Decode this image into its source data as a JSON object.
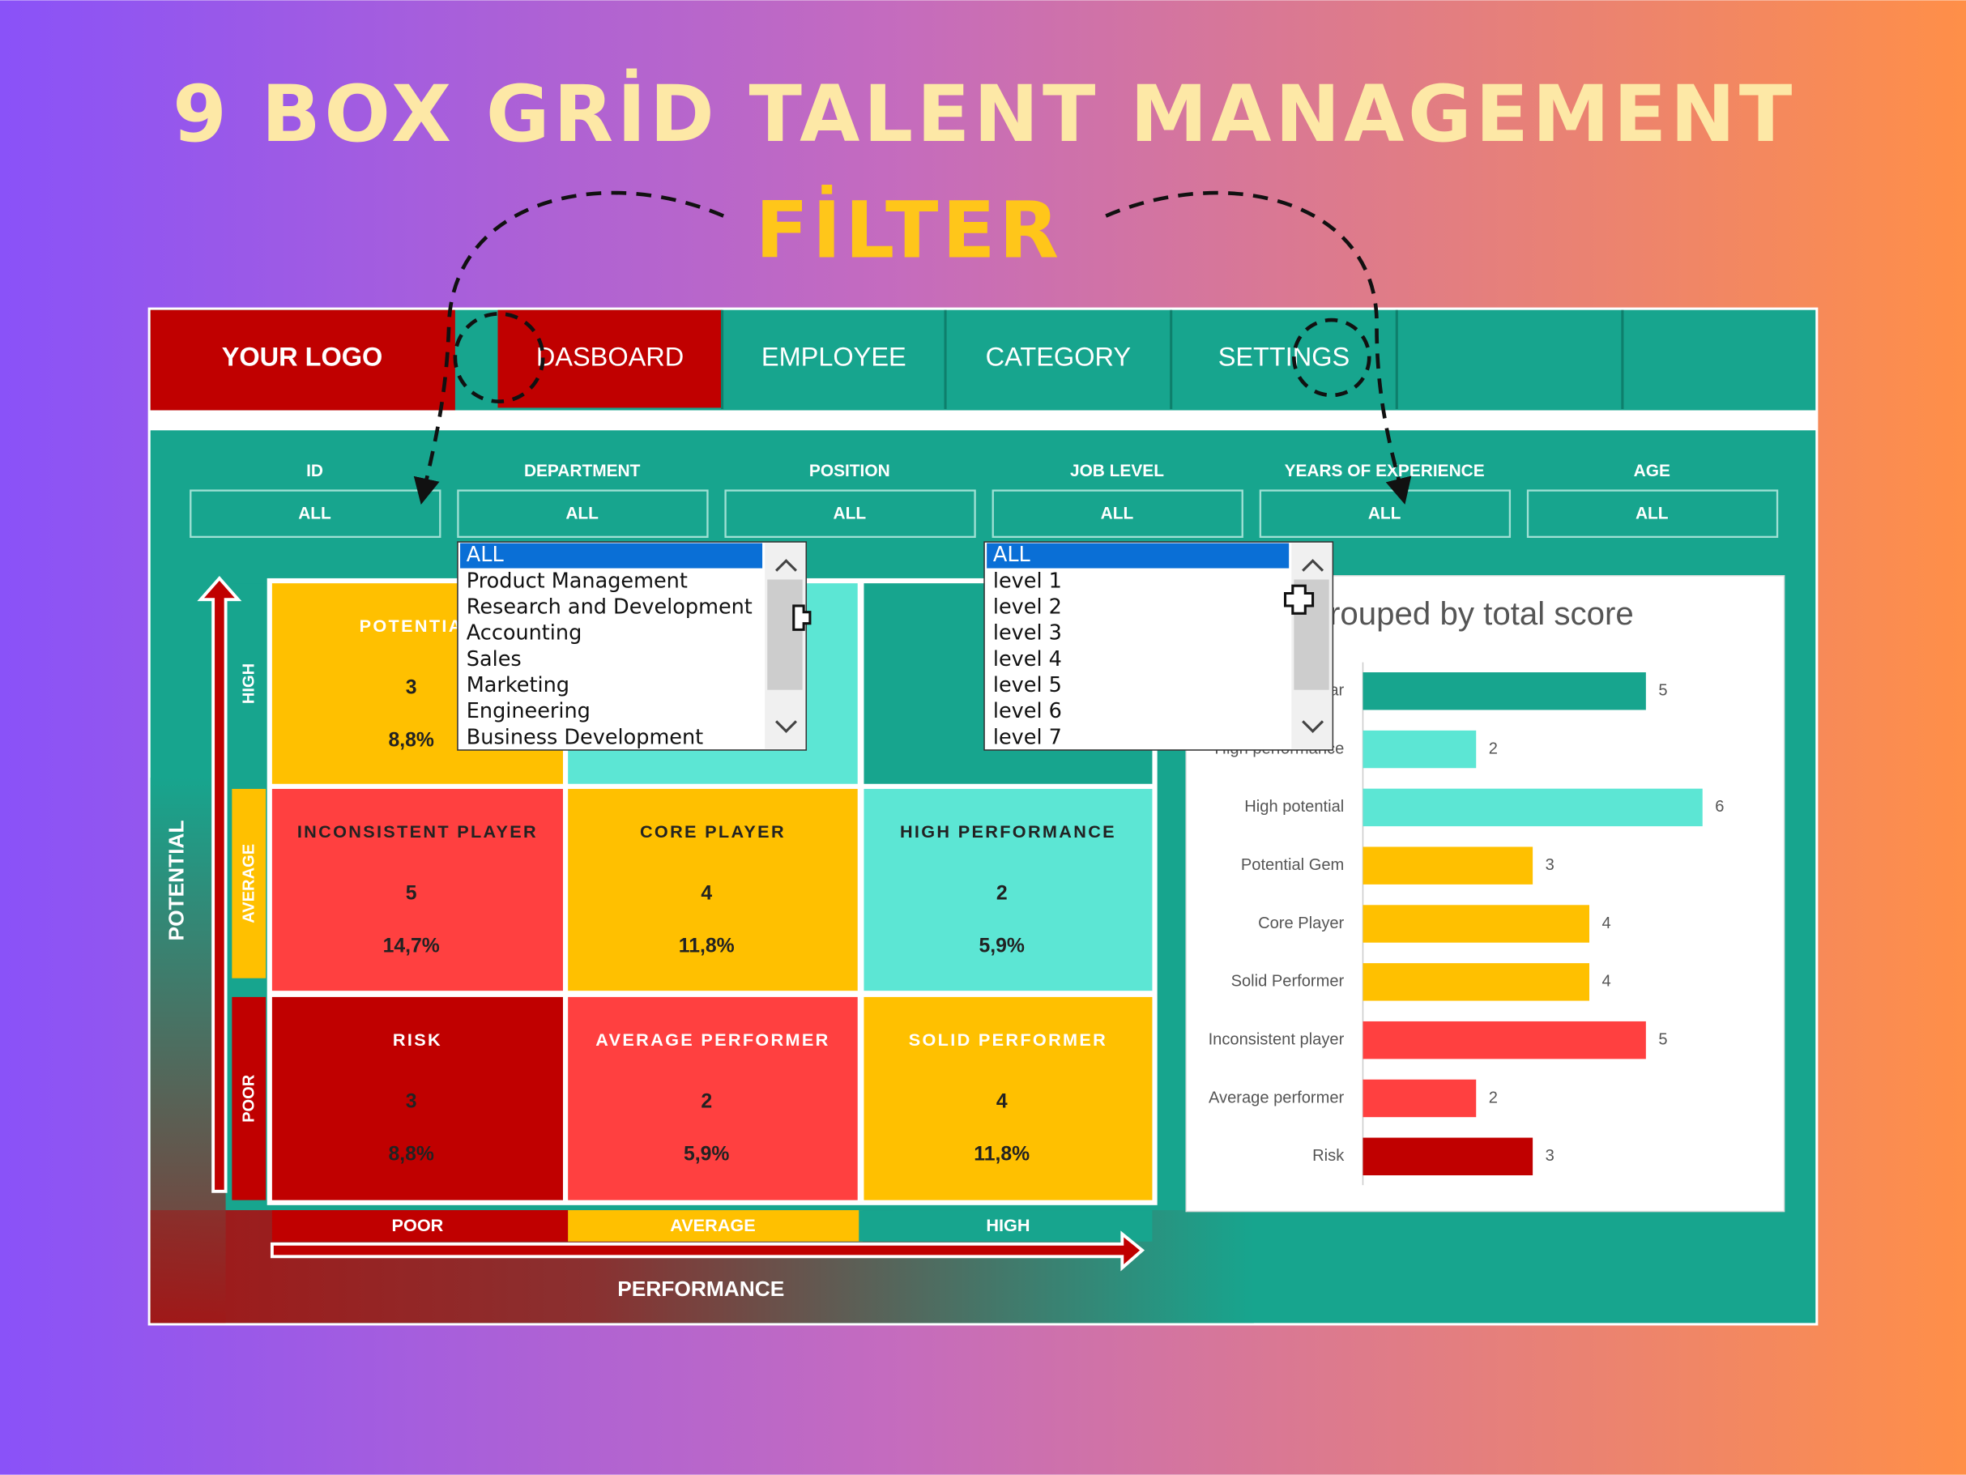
{
  "header": {
    "title": "9 BOX GRİD TALENT MANAGEMENT",
    "subtitle": "FİLTER"
  },
  "nav": {
    "logo": "YOUR LOGO",
    "tabs": [
      "DASBOARD",
      "EMPLOYEE",
      "CATEGORY",
      "SETTINGS"
    ]
  },
  "filters": [
    {
      "label": "ID",
      "value": "ALL"
    },
    {
      "label": "DEPARTMENT",
      "value": "ALL"
    },
    {
      "label": "POSITION",
      "value": "ALL"
    },
    {
      "label": "JOB LEVEL",
      "value": "ALL"
    },
    {
      "label": "YEARS OF EXPERIENCE",
      "value": "ALL"
    },
    {
      "label": "AGE",
      "value": "ALL"
    }
  ],
  "dropdowns": [
    {
      "items": [
        "ALL",
        "Product Management",
        "Research and Development",
        "Accounting",
        "Sales",
        "Marketing",
        "Engineering",
        "Business Development"
      ]
    },
    {
      "items": [
        "ALL",
        "level 1",
        "level 2",
        "level 3",
        "level 4",
        "level 5",
        "level 6",
        "level 7"
      ]
    }
  ],
  "grid": {
    "y_title": "POTENTIAL",
    "y_levels": [
      "HIGH",
      "AVERAGE",
      "POOR"
    ],
    "x_levels": [
      "POOR",
      "AVERAGE",
      "HIGH"
    ],
    "x_title": "PERFORMANCE",
    "cells": [
      [
        {
          "title": "POTENTIAL",
          "count": "3",
          "percent": "8,8%"
        },
        null,
        null
      ],
      [
        {
          "title": "INCONSISTENT PLAYER",
          "count": "5",
          "percent": "14,7%"
        },
        {
          "title": "CORE PLAYER",
          "count": "4",
          "percent": "11,8%"
        },
        {
          "title": "HIGH PERFORMANCE",
          "count": "2",
          "percent": "5,9%"
        }
      ],
      [
        {
          "title": "RISK",
          "count": "3",
          "percent": "8,8%"
        },
        {
          "title": "AVERAGE PERFORMER",
          "count": "2",
          "percent": "5,9%"
        },
        {
          "title": "SOLID PERFORMER",
          "count": "4",
          "percent": "11,8%"
        }
      ]
    ]
  },
  "chart_data": {
    "type": "bar",
    "orientation": "horizontal",
    "title": "Grouped by total score",
    "categories": [
      "Star",
      "High performance",
      "High potential",
      "Potential Gem",
      "Core Player",
      "Solid Performer",
      "Inconsistent player",
      "Average performer",
      "Risk"
    ],
    "values": [
      5,
      2,
      6,
      3,
      4,
      4,
      5,
      2,
      3
    ],
    "colors": [
      "#17a58e",
      "#5ce6d4",
      "#5ce6d4",
      "#ffc000",
      "#ffc000",
      "#ffc000",
      "#ff4040",
      "#ff4040",
      "#c00000"
    ],
    "xlim": [
      0,
      7
    ]
  }
}
